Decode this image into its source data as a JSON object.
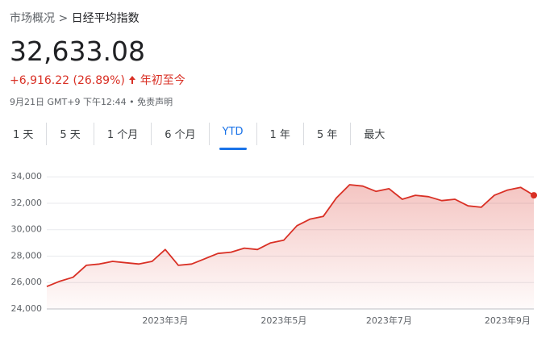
{
  "header": {
    "breadcrumb": [
      "市场概况",
      "日经平均指数"
    ],
    "separator": ">",
    "price": "32,633.08",
    "change": "+6,916.22 (26.89%)",
    "period": "年初至今",
    "timestamp": "9月21日 GMT+9 下午12:44",
    "dot": "•",
    "disclaimer": "免责声明"
  },
  "tabs": [
    "1 天",
    "5 天",
    "1 个月",
    "6 个月",
    "YTD",
    "1 年",
    "5 年",
    "最大"
  ],
  "chart_data": {
    "type": "line",
    "color": "#d93025",
    "grid": true,
    "categories": [
      null,
      null,
      null,
      null,
      null,
      null,
      null,
      null,
      null,
      "2023年3月",
      null,
      null,
      null,
      null,
      null,
      null,
      null,
      null,
      "2023年5月",
      null,
      null,
      null,
      null,
      null,
      null,
      null,
      "2023年7月",
      null,
      null,
      null,
      null,
      null,
      null,
      null,
      null,
      "2023年9月",
      null,
      null
    ],
    "values": [
      25700,
      26100,
      26400,
      27300,
      27400,
      27600,
      27500,
      27400,
      27600,
      28500,
      27300,
      27400,
      27800,
      28200,
      28300,
      28600,
      28500,
      29000,
      29200,
      30300,
      30800,
      31000,
      32400,
      33400,
      33300,
      32900,
      33100,
      32300,
      32600,
      32500,
      32200,
      32300,
      31800,
      31700,
      32600,
      33000,
      33200,
      32600
    ],
    "ylim": [
      24000,
      34500
    ],
    "yticks": [
      {
        "value": 24000,
        "label": "24,000"
      },
      {
        "value": 26000,
        "label": "26,000"
      },
      {
        "value": 28000,
        "label": "28,000"
      },
      {
        "value": 30000,
        "label": "30,000"
      },
      {
        "value": 32000,
        "label": "32,000"
      },
      {
        "value": 34000,
        "label": "34,000"
      }
    ]
  }
}
